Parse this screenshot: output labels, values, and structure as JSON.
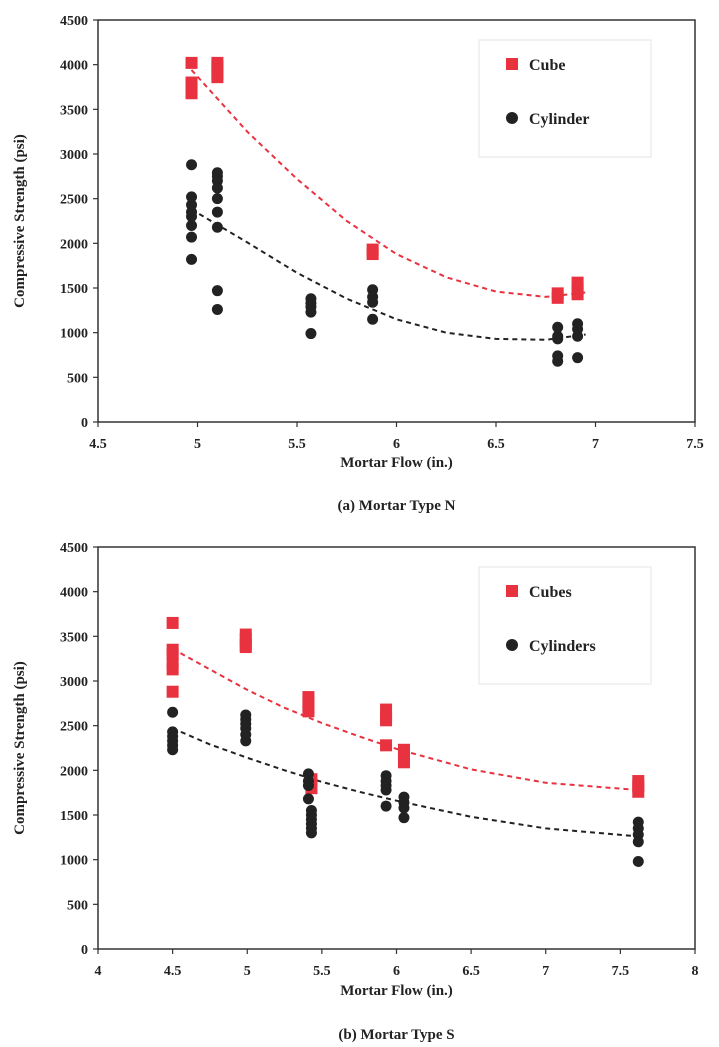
{
  "chart_data": [
    {
      "type": "scatter",
      "caption": "(a) Mortar Type N",
      "xlabel": "Mortar Flow (in.)",
      "ylabel": "Compressive Strength (psi)",
      "xlim": [
        4.5,
        7.5
      ],
      "ylim": [
        0,
        4500
      ],
      "xticks": [
        "4.5",
        "5",
        "5.5",
        "6",
        "6.5",
        "7",
        "7.5"
      ],
      "yticks": [
        "0",
        "500",
        "1000",
        "1500",
        "2000",
        "2500",
        "3000",
        "3500",
        "4000",
        "4500"
      ],
      "legend_position": "top-right",
      "series": [
        {
          "name": "Cube",
          "color": "#e8323f",
          "marker": "square",
          "points": [
            [
              4.97,
              4020
            ],
            [
              4.97,
              3800
            ],
            [
              4.97,
              3720
            ],
            [
              4.97,
              3680
            ],
            [
              5.1,
              4020
            ],
            [
              5.1,
              3980
            ],
            [
              5.1,
              3900
            ],
            [
              5.1,
              3860
            ],
            [
              5.88,
              1930
            ],
            [
              5.88,
              1880
            ],
            [
              6.81,
              1440
            ],
            [
              6.81,
              1390
            ],
            [
              6.91,
              1560
            ],
            [
              6.91,
              1490
            ],
            [
              6.91,
              1430
            ]
          ],
          "trend": [
            [
              4.97,
              3940
            ],
            [
              5.25,
              3250
            ],
            [
              5.5,
              2720
            ],
            [
              5.75,
              2250
            ],
            [
              6.0,
              1880
            ],
            [
              6.25,
              1620
            ],
            [
              6.5,
              1460
            ],
            [
              6.75,
              1400
            ],
            [
              6.95,
              1450
            ]
          ]
        },
        {
          "name": "Cylinder",
          "color": "#222222",
          "marker": "circle",
          "points": [
            [
              4.97,
              2880
            ],
            [
              4.97,
              2520
            ],
            [
              4.97,
              2430
            ],
            [
              4.97,
              2350
            ],
            [
              4.97,
              2300
            ],
            [
              4.97,
              2200
            ],
            [
              4.97,
              2070
            ],
            [
              4.97,
              1820
            ],
            [
              5.1,
              2790
            ],
            [
              5.1,
              2750
            ],
            [
              5.1,
              2700
            ],
            [
              5.1,
              2620
            ],
            [
              5.1,
              2500
            ],
            [
              5.1,
              2350
            ],
            [
              5.1,
              2180
            ],
            [
              5.1,
              1470
            ],
            [
              5.1,
              1260
            ],
            [
              5.57,
              1380
            ],
            [
              5.57,
              1330
            ],
            [
              5.57,
              1290
            ],
            [
              5.57,
              1230
            ],
            [
              5.57,
              990
            ],
            [
              5.88,
              1480
            ],
            [
              5.88,
              1400
            ],
            [
              5.88,
              1340
            ],
            [
              5.88,
              1150
            ],
            [
              6.81,
              1060
            ],
            [
              6.81,
              960
            ],
            [
              6.81,
              930
            ],
            [
              6.81,
              740
            ],
            [
              6.81,
              680
            ],
            [
              6.91,
              1100
            ],
            [
              6.91,
              1040
            ],
            [
              6.91,
              960
            ],
            [
              6.91,
              720
            ]
          ],
          "trend": [
            [
              4.97,
              2380
            ],
            [
              5.25,
              2010
            ],
            [
              5.5,
              1670
            ],
            [
              5.75,
              1380
            ],
            [
              6.0,
              1150
            ],
            [
              6.25,
              1000
            ],
            [
              6.5,
              930
            ],
            [
              6.75,
              920
            ],
            [
              6.95,
              980
            ]
          ]
        }
      ]
    },
    {
      "type": "scatter",
      "caption": "(b) Mortar Type S",
      "xlabel": "Mortar Flow (in.)",
      "ylabel": "Compressive Strength (psi)",
      "xlim": [
        4,
        8
      ],
      "ylim": [
        0,
        4500
      ],
      "xticks": [
        "4",
        "4.5",
        "5",
        "5.5",
        "6",
        "6.5",
        "7",
        "7.5",
        "8"
      ],
      "yticks": [
        "0",
        "500",
        "1000",
        "1500",
        "2000",
        "2500",
        "3000",
        "3500",
        "4000",
        "4500"
      ],
      "legend_position": "top-right",
      "series": [
        {
          "name": "Cubes",
          "color": "#e8323f",
          "marker": "square",
          "points": [
            [
              4.5,
              3650
            ],
            [
              4.5,
              3350
            ],
            [
              4.5,
              3300
            ],
            [
              4.5,
              3200
            ],
            [
              4.5,
              3130
            ],
            [
              4.5,
              2880
            ],
            [
              4.99,
              3520
            ],
            [
              4.99,
              3470
            ],
            [
              4.99,
              3400
            ],
            [
              4.99,
              3380
            ],
            [
              5.41,
              2820
            ],
            [
              5.41,
              2760
            ],
            [
              5.41,
              2700
            ],
            [
              5.41,
              2660
            ],
            [
              5.43,
              1900
            ],
            [
              5.43,
              1800
            ],
            [
              5.93,
              2680
            ],
            [
              5.93,
              2600
            ],
            [
              5.93,
              2560
            ],
            [
              5.93,
              2280
            ],
            [
              6.05,
              2230
            ],
            [
              6.05,
              2160
            ],
            [
              6.05,
              2090
            ],
            [
              7.62,
              1880
            ],
            [
              7.62,
              1820
            ],
            [
              7.62,
              1760
            ]
          ],
          "trend": [
            [
              4.5,
              3360
            ],
            [
              4.75,
              3130
            ],
            [
              5.0,
              2900
            ],
            [
              5.25,
              2700
            ],
            [
              5.5,
              2530
            ],
            [
              5.75,
              2380
            ],
            [
              6.0,
              2240
            ],
            [
              6.5,
              2010
            ],
            [
              7.0,
              1860
            ],
            [
              7.62,
              1780
            ]
          ]
        },
        {
          "name": "Cylinders",
          "color": "#222222",
          "marker": "circle",
          "points": [
            [
              4.5,
              2650
            ],
            [
              4.5,
              2430
            ],
            [
              4.5,
              2380
            ],
            [
              4.5,
              2330
            ],
            [
              4.5,
              2280
            ],
            [
              4.5,
              2230
            ],
            [
              4.99,
              2620
            ],
            [
              4.99,
              2570
            ],
            [
              4.99,
              2520
            ],
            [
              4.99,
              2470
            ],
            [
              4.99,
              2400
            ],
            [
              4.99,
              2330
            ],
            [
              5.41,
              1960
            ],
            [
              5.41,
              1880
            ],
            [
              5.41,
              1830
            ],
            [
              5.41,
              1680
            ],
            [
              5.43,
              1550
            ],
            [
              5.43,
              1500
            ],
            [
              5.43,
              1450
            ],
            [
              5.43,
              1400
            ],
            [
              5.43,
              1350
            ],
            [
              5.43,
              1300
            ],
            [
              5.93,
              1940
            ],
            [
              5.93,
              1880
            ],
            [
              5.93,
              1830
            ],
            [
              5.93,
              1780
            ],
            [
              5.93,
              1600
            ],
            [
              6.05,
              1700
            ],
            [
              6.05,
              1640
            ],
            [
              6.05,
              1580
            ],
            [
              6.05,
              1470
            ],
            [
              7.62,
              1420
            ],
            [
              7.62,
              1350
            ],
            [
              7.62,
              1280
            ],
            [
              7.62,
              1200
            ],
            [
              7.62,
              980
            ]
          ],
          "trend": [
            [
              4.5,
              2470
            ],
            [
              4.75,
              2290
            ],
            [
              5.0,
              2140
            ],
            [
              5.25,
              2000
            ],
            [
              5.5,
              1870
            ],
            [
              5.75,
              1760
            ],
            [
              6.0,
              1660
            ],
            [
              6.5,
              1480
            ],
            [
              7.0,
              1350
            ],
            [
              7.62,
              1260
            ]
          ]
        }
      ]
    }
  ]
}
